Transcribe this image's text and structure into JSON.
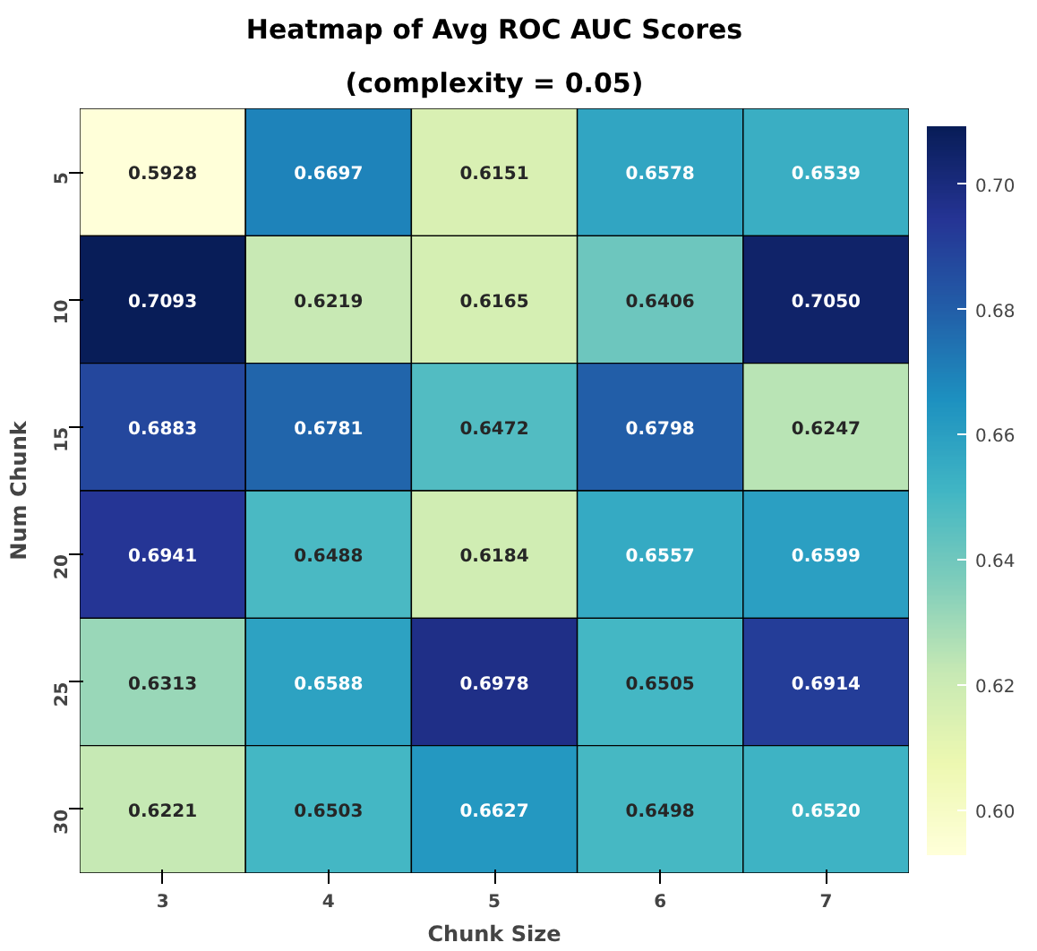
{
  "chart_data": {
    "type": "heatmap",
    "title": "Heatmap of Avg ROC AUC Scores",
    "subtitle": "(complexity = 0.05)",
    "xlabel": "Chunk Size",
    "ylabel": "Num Chunk",
    "categories": [
      "3",
      "4",
      "5",
      "6",
      "7"
    ],
    "y_categories": [
      "5",
      "10",
      "15",
      "20",
      "25",
      "30"
    ],
    "cells": [
      [
        0.5928,
        0.6697,
        0.6151,
        0.6578,
        0.6539
      ],
      [
        0.7093,
        0.6219,
        0.6165,
        0.6406,
        0.705
      ],
      [
        0.6883,
        0.6781,
        0.6472,
        0.6798,
        0.6247
      ],
      [
        0.6941,
        0.6488,
        0.6184,
        0.6557,
        0.6599
      ],
      [
        0.6313,
        0.6588,
        0.6978,
        0.6505,
        0.6914
      ],
      [
        0.6221,
        0.6503,
        0.6627,
        0.6498,
        0.652
      ]
    ],
    "cell_labels": [
      [
        "0.5928",
        "0.6697",
        "0.6151",
        "0.6578",
        "0.6539"
      ],
      [
        "0.7093",
        "0.6219",
        "0.6165",
        "0.6406",
        "0.7050"
      ],
      [
        "0.6883",
        "0.6781",
        "0.6472",
        "0.6798",
        "0.6247"
      ],
      [
        "0.6941",
        "0.6488",
        "0.6184",
        "0.6557",
        "0.6599"
      ],
      [
        "0.6313",
        "0.6588",
        "0.6978",
        "0.6505",
        "0.6914"
      ],
      [
        "0.6221",
        "0.6503",
        "0.6627",
        "0.6498",
        "0.6520"
      ]
    ],
    "clim": [
      0.5928,
      0.7093
    ],
    "cticks": [
      {
        "value": 0.6,
        "label": "0.60"
      },
      {
        "value": 0.62,
        "label": "0.62"
      },
      {
        "value": 0.64,
        "label": "0.64"
      },
      {
        "value": 0.66,
        "label": "0.66"
      },
      {
        "value": 0.68,
        "label": "0.68"
      },
      {
        "value": 0.7,
        "label": "0.70"
      }
    ],
    "data_labels": true
  }
}
